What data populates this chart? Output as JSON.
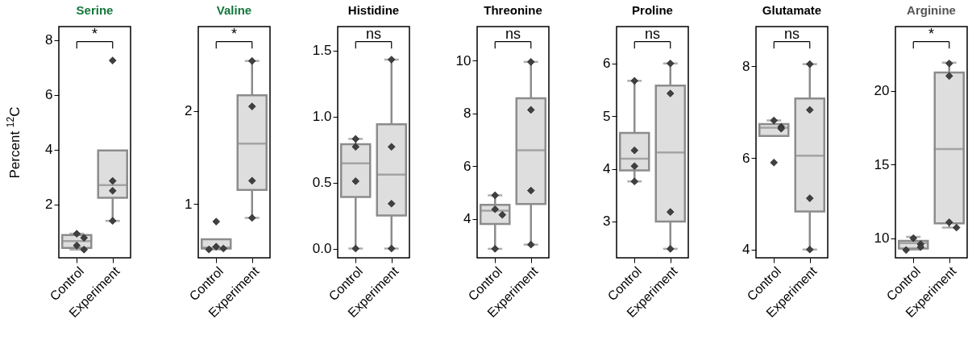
{
  "chart_data": [
    {
      "type": "box",
      "title": "Serine",
      "ylabel": "Percent $^{12}$C",
      "categories": [
        "Control",
        "Experiment"
      ],
      "ylim": [
        0.05,
        8.5
      ],
      "yticks": [
        2,
        4,
        6,
        8
      ],
      "annotations": [
        "*"
      ],
      "marker": "diamond",
      "series": [
        {
          "type": "box",
          "color": "#dedede",
          "boxes": [
            {
              "low": 0.35,
              "q1": 0.41,
              "median": 0.66,
              "q3": 0.88,
              "high": 0.93
            },
            {
              "low": 1.4,
              "q1": 2.24,
              "median": 2.71,
              "q3": 3.97,
              "high": 3.97
            }
          ]
        },
        {
          "type": "scatter",
          "color": "#404040",
          "x": [
            "Control",
            "Control",
            "Control",
            "Control",
            "Experiment",
            "Experiment",
            "Experiment",
            "Experiment"
          ],
          "values": [
            0.93,
            0.78,
            0.5,
            0.35,
            7.26,
            2.86,
            2.5,
            1.4
          ]
        }
      ]
    },
    {
      "type": "box",
      "title": "Valine",
      "categories": [
        "Control",
        "Experiment"
      ],
      "ylim": [
        0.42,
        2.91
      ],
      "yticks": [
        1,
        2
      ],
      "annotations": [
        "*"
      ],
      "marker": "diamond",
      "series": [
        {
          "type": "box",
          "color": "#dedede",
          "boxes": [
            {
              "low": 0.51,
              "q1": 0.52,
              "median": 0.53,
              "q3": 0.62,
              "high": 0.62
            },
            {
              "low": 0.85,
              "q1": 1.15,
              "median": 1.65,
              "q3": 2.17,
              "high": 2.54
            }
          ]
        },
        {
          "type": "scatter",
          "color": "#404040",
          "x": [
            "Control",
            "Control",
            "Control",
            "Control",
            "Experiment",
            "Experiment",
            "Experiment",
            "Experiment"
          ],
          "values": [
            0.81,
            0.54,
            0.52,
            0.51,
            2.54,
            2.05,
            1.25,
            0.85
          ]
        }
      ]
    },
    {
      "type": "box",
      "title": "Histidine",
      "categories": [
        "Control",
        "Experiment"
      ],
      "ylim": [
        -0.07,
        1.68
      ],
      "yticks": [
        {
          "value": 0,
          "label": "0.0"
        },
        0.5,
        {
          "value": 1,
          "label": "1.0"
        },
        1.5
      ],
      "annotations": [
        "ns"
      ],
      "marker": "diamond",
      "series": [
        {
          "type": "box",
          "color": "#dedede",
          "boxes": [
            {
              "low": 0,
              "q1": 0.39,
              "median": 0.645,
              "q3": 0.79,
              "high": 0.83
            },
            {
              "low": 0,
              "q1": 0.25,
              "median": 0.56,
              "q3": 0.94,
              "high": 1.43
            }
          ]
        },
        {
          "type": "scatter",
          "color": "#404040",
          "x": [
            "Control",
            "Control",
            "Control",
            "Control",
            "Experiment",
            "Experiment",
            "Experiment",
            "Experiment"
          ],
          "values": [
            0.83,
            0.77,
            0.51,
            0,
            1.43,
            0.77,
            0.34,
            0
          ]
        }
      ]
    },
    {
      "type": "box",
      "title": "Threonine",
      "categories": [
        "Control",
        "Experiment"
      ],
      "ylim": [
        2.52,
        11.29
      ],
      "yticks": [
        4,
        6,
        8,
        10
      ],
      "annotations": [
        "ns"
      ],
      "marker": "diamond",
      "series": [
        {
          "type": "box",
          "color": "#dedede",
          "boxes": [
            {
              "low": 2.86,
              "q1": 3.8,
              "median": 4.31,
              "q3": 4.53,
              "high": 4.89
            },
            {
              "low": 3.02,
              "q1": 4.56,
              "median": 6.6,
              "q3": 8.57,
              "high": 9.95
            }
          ]
        },
        {
          "type": "scatter",
          "color": "#404040",
          "x": [
            "Control",
            "Control",
            "Control",
            "Control",
            "Experiment",
            "Experiment",
            "Experiment",
            "Experiment"
          ],
          "values": [
            4.89,
            4.36,
            4.15,
            2.86,
            9.95,
            8.13,
            5.07,
            3.02
          ]
        }
      ]
    },
    {
      "type": "box",
      "title": "Proline",
      "categories": [
        "Control",
        "Experiment"
      ],
      "ylim": [
        2.31,
        6.7
      ],
      "yticks": [
        3,
        4,
        5,
        6
      ],
      "annotations": [
        "ns"
      ],
      "marker": "diamond",
      "series": [
        {
          "type": "box",
          "color": "#dedede",
          "boxes": [
            {
              "low": 3.76,
              "q1": 3.97,
              "median": 4.19,
              "q3": 4.68,
              "high": 5.67
            },
            {
              "low": 2.48,
              "q1": 3.0,
              "median": 4.31,
              "q3": 5.58,
              "high": 6.0
            }
          ]
        },
        {
          "type": "scatter",
          "color": "#404040",
          "x": [
            "Control",
            "Control",
            "Control",
            "Control",
            "Experiment",
            "Experiment",
            "Experiment",
            "Experiment"
          ],
          "values": [
            5.67,
            4.35,
            4.05,
            3.76,
            6.0,
            5.43,
            3.18,
            2.48
          ]
        }
      ]
    },
    {
      "type": "box",
      "title": "Glutamate",
      "categories": [
        "Control",
        "Experiment"
      ],
      "ylim": [
        3.82,
        8.87
      ],
      "yticks": [
        4,
        6,
        8
      ],
      "annotations": [
        "ns"
      ],
      "marker": "diamond",
      "series": [
        {
          "type": "box",
          "color": "#dedede",
          "boxes": [
            {
              "low": 6.48,
              "q1": 6.48,
              "median": 6.66,
              "q3": 6.74,
              "high": 6.82
            },
            {
              "low": 4.0,
              "q1": 4.83,
              "median": 6.05,
              "q3": 7.3,
              "high": 8.05
            }
          ]
        },
        {
          "type": "scatter",
          "color": "#404040",
          "x": [
            "Control",
            "Control",
            "Control",
            "Control",
            "Experiment",
            "Experiment",
            "Experiment",
            "Experiment"
          ],
          "values": [
            6.82,
            6.68,
            6.64,
            5.9,
            8.05,
            7.05,
            5.12,
            4.0
          ]
        }
      ]
    },
    {
      "type": "box",
      "title": "Arginine",
      "categories": [
        "Control",
        "Experiment"
      ],
      "ylim": [
        8.67,
        24.35
      ],
      "yticks": [
        10,
        15,
        20
      ],
      "annotations": [
        "*"
      ],
      "marker": "diamond",
      "series": [
        {
          "type": "box",
          "color": "#dedede",
          "boxes": [
            {
              "low": 9.22,
              "q1": 9.3,
              "median": 9.67,
              "q3": 9.82,
              "high": 10.09
            },
            {
              "low": 10.72,
              "q1": 11.0,
              "median": 16.04,
              "q3": 21.23,
              "high": 21.9
            }
          ]
        },
        {
          "type": "scatter",
          "color": "#404040",
          "x": [
            "Control",
            "Control",
            "Control",
            "Control",
            "Experiment",
            "Experiment",
            "Experiment",
            "Experiment"
          ],
          "values": [
            10.0,
            9.6,
            9.4,
            9.2,
            21.85,
            21.0,
            11.08,
            10.72
          ]
        }
      ]
    }
  ]
}
